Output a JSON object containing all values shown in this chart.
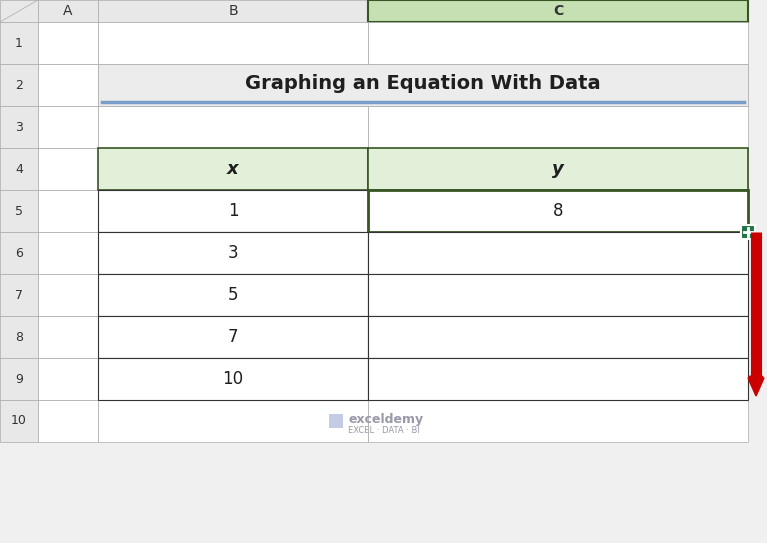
{
  "title": "Graphing an Equation With Data",
  "col_headers": [
    "x",
    "y"
  ],
  "x_values": [
    "1",
    "3",
    "5",
    "7",
    "10"
  ],
  "y_values": [
    "8",
    "",
    "",
    "",
    ""
  ],
  "row_labels": [
    "1",
    "2",
    "3",
    "4",
    "5",
    "6",
    "7",
    "8",
    "9",
    "10"
  ],
  "col_letters": [
    "A",
    "B",
    "C"
  ],
  "bg_color": "#f0f0f0",
  "header_bg": "#e8e8e8",
  "table_header_fill": "#e2efd9",
  "table_header_border": "#375623",
  "cell_fill_white": "#ffffff",
  "selected_col_header": "#c6e0b4",
  "selected_cell_border": "#375623",
  "title_color": "#1f1f1f",
  "grid_color": "#aaaaaa",
  "watermark_color": "#9999aa",
  "arrow_color": "#cc0000",
  "arrow_fill": "#cc0000",
  "cross_fill": "#217346",
  "cross_border": "#ffffff"
}
